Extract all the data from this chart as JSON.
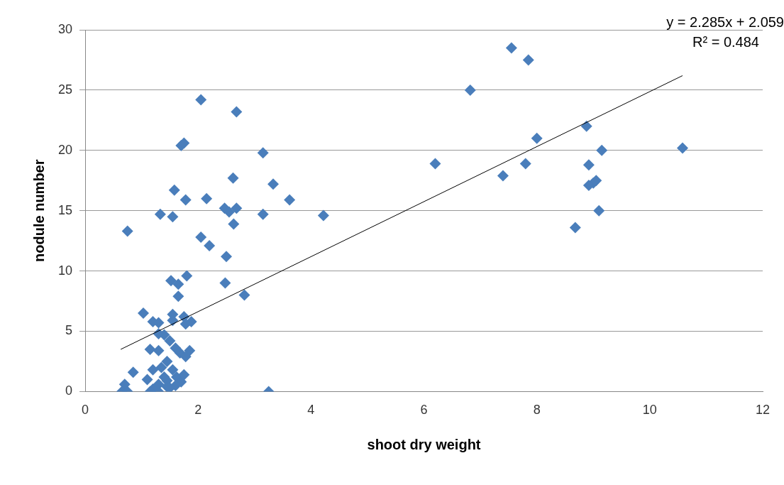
{
  "chart_data": {
    "type": "scatter",
    "xlabel": "shoot dry weight",
    "ylabel": "nodule number",
    "xlim": [
      0,
      12
    ],
    "xticks": [
      0,
      2,
      4,
      6,
      8,
      10,
      12
    ],
    "ylim": [
      0,
      30
    ],
    "yticks": [
      0,
      5,
      10,
      15,
      20,
      25,
      30
    ],
    "grid": "y",
    "legend": false,
    "marker": "diamond",
    "annotations": [
      "y = 2.285x + 2.059",
      "R² = 0.484"
    ],
    "series": [
      {
        "color": "#4a7ebb",
        "x": [
          7.55,
          7.85,
          6.82,
          8.0,
          8.88,
          10.58,
          9.15,
          6.2,
          7.8,
          7.4,
          8.92,
          9.0,
          8.92,
          9.05,
          9.1,
          8.68,
          4.22,
          3.62,
          3.33,
          3.15,
          3.15,
          2.05,
          2.68,
          1.7,
          1.75,
          2.62,
          2.15,
          1.78,
          1.58,
          1.55,
          1.33,
          0.75,
          2.47,
          2.55,
          2.68,
          2.63,
          2.05,
          2.2,
          2.5,
          1.8,
          1.65,
          1.52,
          1.65,
          2.48,
          2.82,
          1.03,
          1.55,
          1.75,
          1.2,
          1.3,
          1.88,
          1.78,
          1.55,
          1.4,
          1.5,
          1.3,
          1.15,
          1.6,
          1.68,
          1.85,
          1.78,
          1.3,
          1.45,
          1.35,
          1.2,
          0.85,
          1.1,
          1.4,
          1.55,
          1.62,
          1.7,
          1.75,
          1.3,
          1.45,
          1.6,
          1.2,
          0.7,
          0.65,
          0.75,
          1.15,
          1.3,
          1.45,
          3.25,
          1.5
        ],
        "values": [
          28.5,
          27.5,
          25,
          21,
          22,
          20.2,
          20,
          18.9,
          18.9,
          17.9,
          18.8,
          17.3,
          17.1,
          17.5,
          15,
          13.6,
          14.6,
          15.9,
          17.2,
          19.8,
          14.7,
          24.2,
          23.2,
          20.4,
          20.6,
          17.7,
          16,
          15.9,
          16.7,
          14.5,
          14.7,
          13.3,
          15.2,
          14.9,
          15.2,
          13.9,
          12.8,
          12.1,
          11.2,
          9.6,
          8.9,
          9.2,
          7.9,
          9.0,
          8.0,
          6.5,
          6.4,
          6.2,
          5.8,
          5.7,
          5.8,
          5.6,
          5.9,
          4.7,
          4.2,
          4.8,
          3.5,
          3.6,
          3.2,
          3.4,
          2.9,
          3.4,
          2.5,
          2.0,
          1.8,
          1.6,
          1.0,
          1.2,
          1.8,
          1.2,
          0.8,
          1.4,
          0.6,
          0.4,
          0.5,
          0.2,
          0.6,
          0,
          0,
          0,
          0,
          0.9,
          0,
          0.3
        ]
      },
      {
        "type": "line",
        "color": "#000000",
        "marker": "none",
        "x": [
          0.63,
          10.58
        ],
        "values": [
          3.5,
          26.2
        ]
      }
    ]
  }
}
